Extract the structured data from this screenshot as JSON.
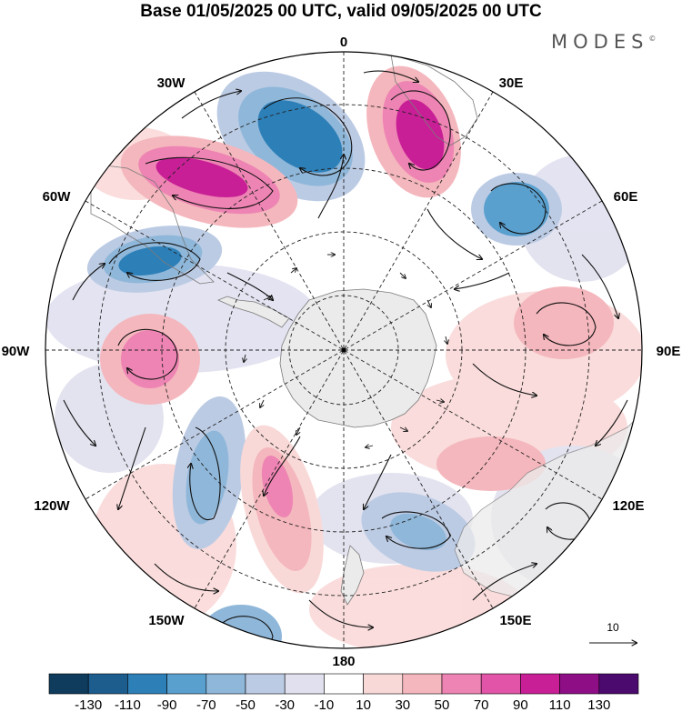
{
  "title": "Base 01/05/2025 00 UTC, valid 09/05/2025 00 UTC",
  "brand": "MODES",
  "brand_mark": "©",
  "longitude_labels": {
    "lon_0": "0",
    "lon_30e": "30E",
    "lon_60e": "60E",
    "lon_90e": "90E",
    "lon_120e": "120E",
    "lon_150e": "150E",
    "lon_180": "180",
    "lon_150w": "150W",
    "lon_120w": "120W",
    "lon_90w": "90W",
    "lon_60w": "60W",
    "lon_30w": "30W"
  },
  "vector_reference": "10",
  "colorbar": {
    "colors": [
      "#0f3b5c",
      "#1d5d8e",
      "#2d7fb8",
      "#5aa0cf",
      "#8fb7d9",
      "#bccbe4",
      "#e0e0ef",
      "#ffffff",
      "#f9d9d8",
      "#f4b7bd",
      "#ee84b3",
      "#e154a7",
      "#c81f96",
      "#8e0e86",
      "#4b0a6e"
    ],
    "labels": [
      "-130",
      "-110",
      "-90",
      "-70",
      "-50",
      "-30",
      "-10",
      "10",
      "30",
      "50",
      "70",
      "90",
      "110",
      "130"
    ]
  },
  "anomaly_cells": [
    {
      "name": "negative-anomaly-30w",
      "color": "#2d7fb8"
    },
    {
      "name": "positive-anomaly-15e",
      "color": "#c81f96"
    },
    {
      "name": "positive-anomaly-60w",
      "color": "#c81f96"
    },
    {
      "name": "negative-anomaly-60w",
      "color": "#2d7fb8"
    },
    {
      "name": "negative-anomaly-50e",
      "color": "#5aa0cf"
    },
    {
      "name": "positive-anomaly-90w",
      "color": "#ee84b3"
    },
    {
      "name": "negative-anomaly-120w",
      "color": "#8fb7d9"
    },
    {
      "name": "positive-anomaly-160w",
      "color": "#ee84b3"
    },
    {
      "name": "negative-anomaly-140e",
      "color": "#8fb7d9"
    },
    {
      "name": "positive-anomaly-80e",
      "color": "#f4b7bd"
    },
    {
      "name": "positive-anomaly-110e",
      "color": "#f4b7bd"
    },
    {
      "name": "negative-anomaly-130w",
      "color": "#8fb7d9"
    }
  ],
  "colors": {
    "land": "#ebebeb",
    "grid": "#222222",
    "coast": "#7a7a7a"
  }
}
